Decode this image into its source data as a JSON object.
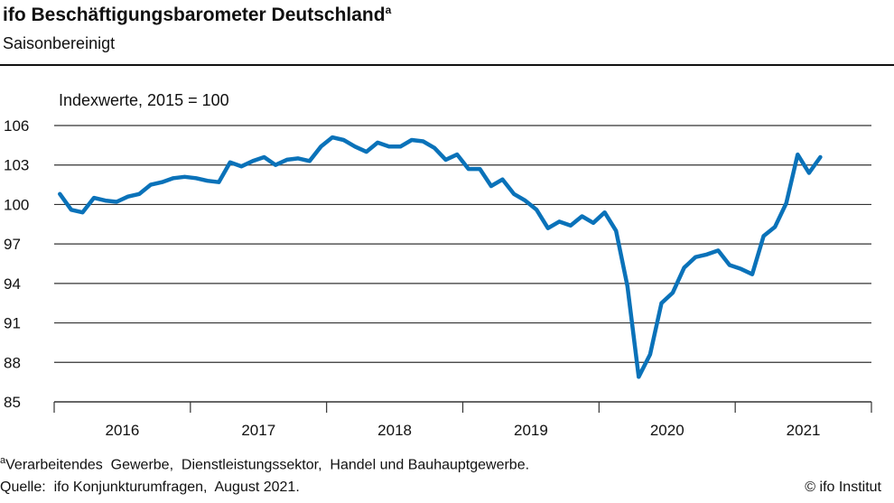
{
  "title": "ifo Beschäftigungsbarometer Deutschland",
  "title_marker": "a",
  "subtitle": "Saisonbereinigt",
  "footnote_marker": "a",
  "footnote": "Verarbeitendes  Gewerbe,  Dienstleistungssektor,  Handel und Bauhauptgewerbe.",
  "source": "Quelle:  ifo Konjunkturumfragen,  August 2021.",
  "copyright": "© ifo Institut",
  "chart_data": {
    "type": "line",
    "ylabel": "Indexwerte, 2015 = 100",
    "ylim": [
      85,
      106
    ],
    "yticks": [
      85,
      88,
      91,
      94,
      97,
      100,
      103,
      106
    ],
    "xticks": [
      "2016",
      "2017",
      "2018",
      "2019",
      "2020",
      "2021"
    ],
    "x_start": "2016-01",
    "x_end": "2021-08",
    "frequency": "monthly",
    "grid": true,
    "color": "#0a72b9",
    "series": [
      {
        "values": [
          100.8,
          99.6,
          99.4,
          100.5,
          100.3,
          100.2,
          100.6,
          100.8,
          101.5,
          101.7,
          102.0,
          102.1,
          102.0,
          101.8,
          101.7,
          103.2,
          102.9,
          103.3,
          103.6,
          103.0,
          103.4,
          103.5,
          103.3,
          104.4,
          105.1,
          104.9,
          104.4,
          104.0,
          104.7,
          104.4,
          104.4,
          104.9,
          104.8,
          104.3,
          103.4,
          103.8,
          102.7,
          102.7,
          101.4,
          101.9,
          100.8,
          100.3,
          99.6,
          98.2,
          98.7,
          98.4,
          99.1,
          98.6,
          99.4,
          98.0,
          93.8,
          86.9,
          88.6,
          92.5,
          93.3,
          95.2,
          96.0,
          96.2,
          96.5,
          95.4,
          95.1,
          94.7,
          97.6,
          98.3,
          100.1,
          103.8,
          102.4,
          103.6
        ]
      }
    ]
  }
}
